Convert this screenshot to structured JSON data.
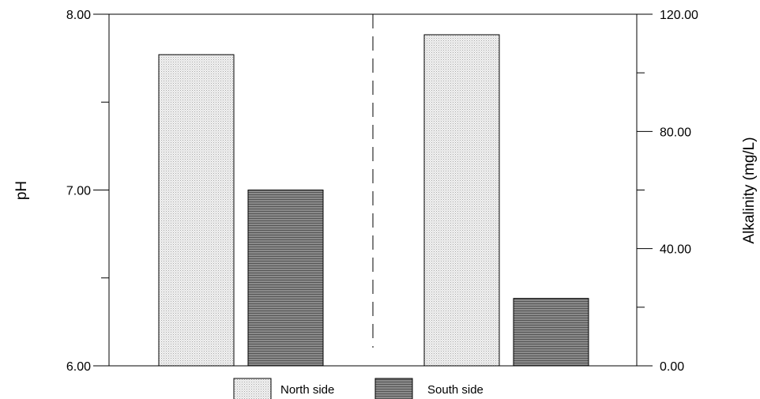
{
  "chart_data": {
    "type": "bar",
    "groups": [
      {
        "axis": "left",
        "ylabel": "pH",
        "ylim": [
          6.0,
          8.0
        ],
        "y_tick_labels": [
          "6.00",
          "7.00",
          "8.00"
        ],
        "values": [
          7.77,
          7.0
        ]
      },
      {
        "axis": "right",
        "ylabel": "Alkalinity (mg/L)",
        "ylim": [
          0.0,
          120.0
        ],
        "y_tick_labels": [
          "0.00",
          "40.00",
          "80.00",
          "120.00"
        ],
        "values": [
          113,
          23
        ]
      }
    ],
    "series": [
      {
        "name": "North side",
        "pattern": "light-stipple",
        "color": "#e8e8e8"
      },
      {
        "name": "South side",
        "pattern": "dark-hatch",
        "color": "#7a7a7a"
      }
    ],
    "grid": false,
    "legend_position": "bottom-center",
    "divider": "dashed vertical line between pH and alkalinity groups"
  }
}
